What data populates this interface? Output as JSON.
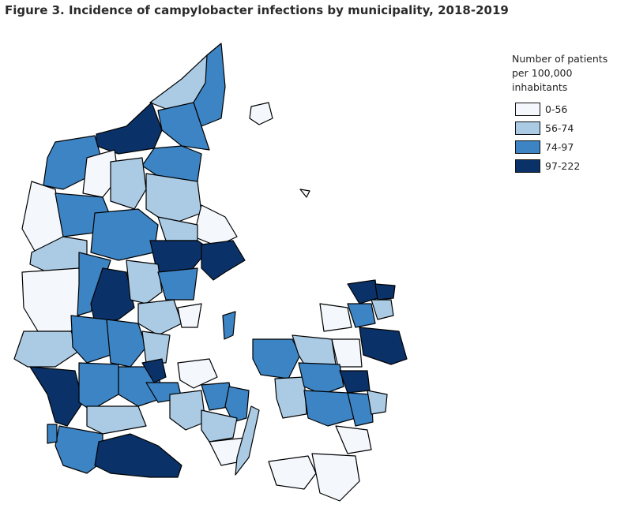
{
  "title": "Figure 3. Incidence of campylobacter infections by municipality, 2018-2019",
  "legend": {
    "title_line1": "Number of patients",
    "title_line2": "per 100,000 inhabitants",
    "items": [
      {
        "label": "0-56",
        "color": "#f4f8fd"
      },
      {
        "label": "56-74",
        "color": "#abcbe5"
      },
      {
        "label": "74-97",
        "color": "#3d84c4"
      },
      {
        "label": "97-222",
        "color": "#0b3268"
      }
    ]
  }
}
